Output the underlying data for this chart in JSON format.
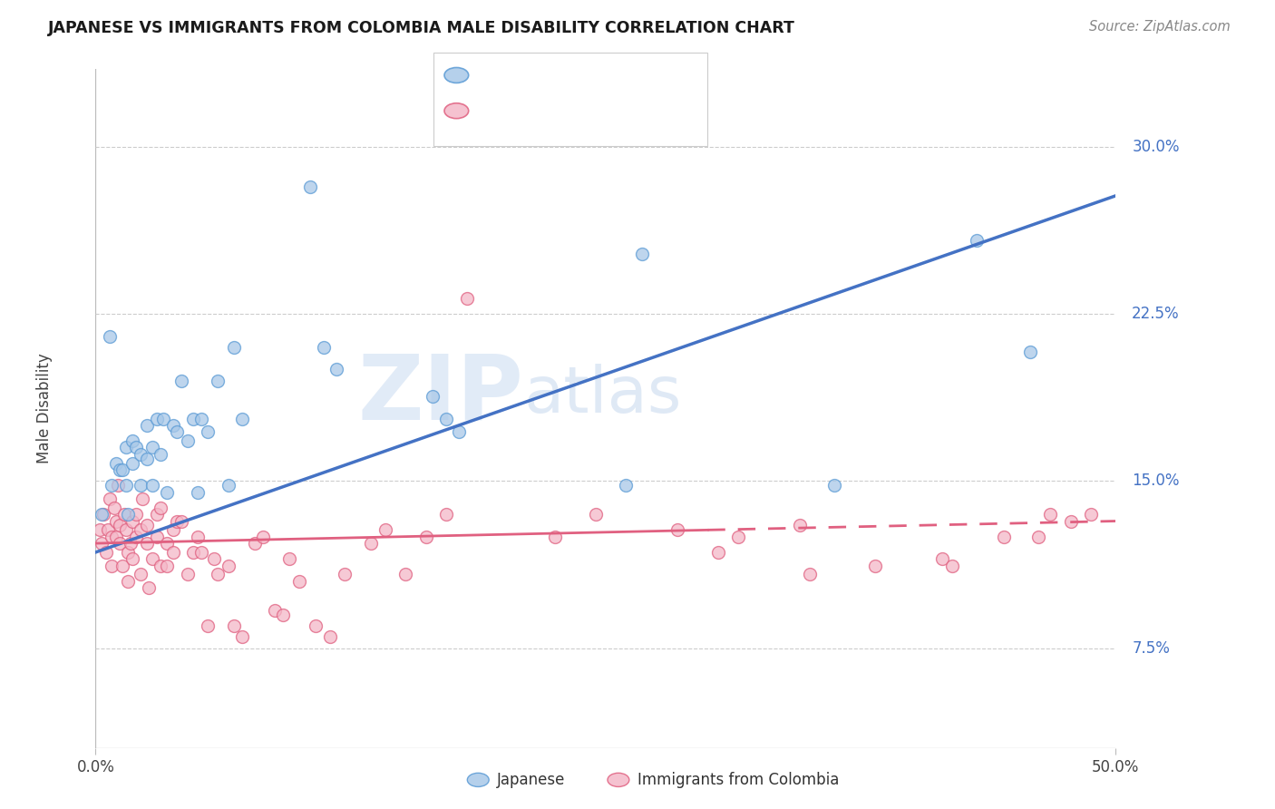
{
  "title": "JAPANESE VS IMMIGRANTS FROM COLOMBIA MALE DISABILITY CORRELATION CHART",
  "source": "Source: ZipAtlas.com",
  "ylabel": "Male Disability",
  "xmin": 0.0,
  "xmax": 0.5,
  "ymin": 0.03,
  "ymax": 0.335,
  "yticks": [
    0.075,
    0.15,
    0.225,
    0.3
  ],
  "ytick_labels": [
    "7.5%",
    "15.0%",
    "22.5%",
    "30.0%"
  ],
  "watermark_zip": "ZIP",
  "watermark_atlas": "atlas",
  "blue_color": "#a8c8e8",
  "blue_edge": "#5b9bd5",
  "pink_color": "#f4b8c8",
  "pink_edge": "#e06080",
  "trend_blue": "#4472c4",
  "trend_pink": "#e06080",
  "japanese_points_x": [
    0.003,
    0.007,
    0.008,
    0.01,
    0.012,
    0.013,
    0.015,
    0.015,
    0.016,
    0.018,
    0.018,
    0.02,
    0.022,
    0.022,
    0.025,
    0.025,
    0.028,
    0.028,
    0.03,
    0.032,
    0.033,
    0.035,
    0.038,
    0.04,
    0.042,
    0.045,
    0.048,
    0.05,
    0.052,
    0.055,
    0.06,
    0.065,
    0.068,
    0.072,
    0.105,
    0.112,
    0.118,
    0.165,
    0.172,
    0.178,
    0.26,
    0.268,
    0.362,
    0.432,
    0.458
  ],
  "japanese_points_y": [
    0.135,
    0.215,
    0.148,
    0.158,
    0.155,
    0.155,
    0.148,
    0.165,
    0.135,
    0.168,
    0.158,
    0.165,
    0.148,
    0.162,
    0.16,
    0.175,
    0.165,
    0.148,
    0.178,
    0.162,
    0.178,
    0.145,
    0.175,
    0.172,
    0.195,
    0.168,
    0.178,
    0.145,
    0.178,
    0.172,
    0.195,
    0.148,
    0.21,
    0.178,
    0.282,
    0.21,
    0.2,
    0.188,
    0.178,
    0.172,
    0.148,
    0.252,
    0.148,
    0.258,
    0.208
  ],
  "colombia_points_x": [
    0.002,
    0.003,
    0.004,
    0.005,
    0.006,
    0.007,
    0.008,
    0.008,
    0.009,
    0.01,
    0.01,
    0.011,
    0.012,
    0.012,
    0.013,
    0.014,
    0.015,
    0.016,
    0.016,
    0.017,
    0.018,
    0.018,
    0.02,
    0.02,
    0.022,
    0.022,
    0.023,
    0.025,
    0.025,
    0.026,
    0.028,
    0.03,
    0.03,
    0.032,
    0.032,
    0.035,
    0.035,
    0.038,
    0.038,
    0.04,
    0.042,
    0.045,
    0.048,
    0.05,
    0.052,
    0.055,
    0.058,
    0.06,
    0.065,
    0.068,
    0.072,
    0.078,
    0.082,
    0.088,
    0.092,
    0.095,
    0.1,
    0.108,
    0.115,
    0.122,
    0.135,
    0.142,
    0.152,
    0.162,
    0.172,
    0.182,
    0.225,
    0.245,
    0.285,
    0.305,
    0.315,
    0.345,
    0.382,
    0.415,
    0.462,
    0.478,
    0.488,
    0.35,
    0.42,
    0.445,
    0.468
  ],
  "colombia_points_y": [
    0.128,
    0.122,
    0.135,
    0.118,
    0.128,
    0.142,
    0.125,
    0.112,
    0.138,
    0.132,
    0.125,
    0.148,
    0.122,
    0.13,
    0.112,
    0.135,
    0.128,
    0.118,
    0.105,
    0.122,
    0.132,
    0.115,
    0.125,
    0.135,
    0.128,
    0.108,
    0.142,
    0.13,
    0.122,
    0.102,
    0.115,
    0.135,
    0.125,
    0.112,
    0.138,
    0.112,
    0.122,
    0.128,
    0.118,
    0.132,
    0.132,
    0.108,
    0.118,
    0.125,
    0.118,
    0.085,
    0.115,
    0.108,
    0.112,
    0.085,
    0.08,
    0.122,
    0.125,
    0.092,
    0.09,
    0.115,
    0.105,
    0.085,
    0.08,
    0.108,
    0.122,
    0.128,
    0.108,
    0.125,
    0.135,
    0.232,
    0.125,
    0.135,
    0.128,
    0.118,
    0.125,
    0.13,
    0.112,
    0.115,
    0.125,
    0.132,
    0.135,
    0.108,
    0.112,
    0.125,
    0.135
  ],
  "trend_blue_x0": 0.0,
  "trend_blue_y0": 0.118,
  "trend_blue_x1": 0.5,
  "trend_blue_y1": 0.278,
  "trend_pink_x0": 0.0,
  "trend_pink_y0": 0.122,
  "trend_pink_x1": 0.5,
  "trend_pink_y1": 0.132,
  "trend_pink_solid_end": 0.3
}
